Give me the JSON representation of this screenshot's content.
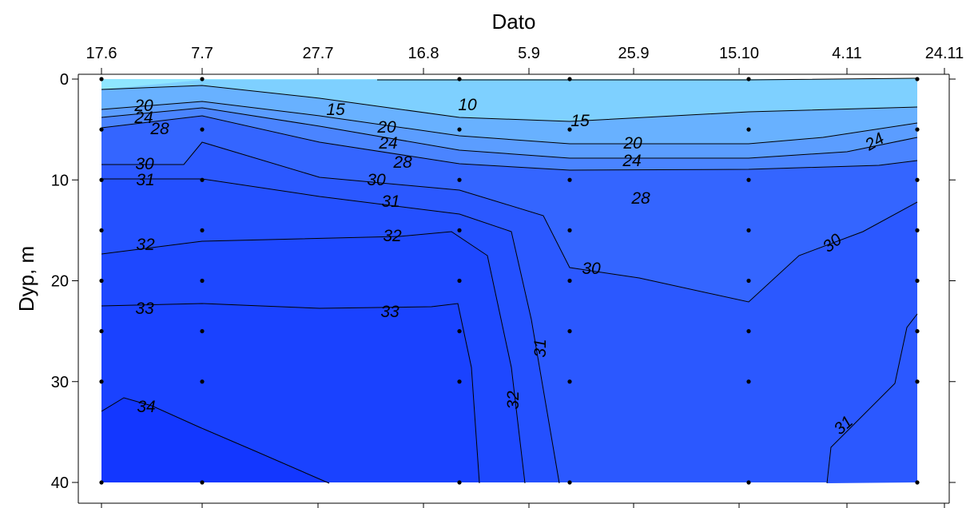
{
  "chart_data": {
    "type": "contour",
    "title": "",
    "xlabel": "Dato",
    "ylabel": "Dyp, m",
    "x_tick_labels": [
      "17.6",
      "7.7",
      "27.7",
      "16.8",
      "5.9",
      "25.9",
      "15.10",
      "4.11",
      "24.11"
    ],
    "y_ticks": [
      0,
      10,
      20,
      30,
      40
    ],
    "ylim": [
      0,
      40
    ],
    "y_inverted": true,
    "x_axis_position": "top",
    "contour_levels": [
      10,
      15,
      20,
      24,
      28,
      30,
      31,
      32,
      33,
      34
    ],
    "fill_colors": {
      "lt10": "#8fe6ff",
      "10-15": "#7ed0ff",
      "15-20": "#68b1ff",
      "20-24": "#5b9dff",
      "24-28": "#4a84ff",
      "28-30": "#3465ff",
      "30-31": "#2b58ff",
      "31-32": "#2450ff",
      "32-33": "#1e48ff",
      "33-34": "#1a42ff",
      "gt34": "#1337ff"
    },
    "line_color": "#000000",
    "sample_stations": [
      {
        "date": "17.6",
        "depths": [
          0,
          5,
          10,
          15,
          20,
          25,
          30,
          40
        ]
      },
      {
        "date": "7.7",
        "depths": [
          0,
          5,
          10,
          15,
          20,
          25,
          30,
          40
        ]
      },
      {
        "date": "16.8",
        "depths": [
          0,
          5,
          10,
          15,
          20,
          25,
          30,
          40
        ]
      },
      {
        "date": "5.9",
        "depths": [
          0,
          5,
          10,
          15,
          20,
          25,
          30,
          40
        ]
      },
      {
        "date": "15.10",
        "depths": [
          0,
          5,
          10,
          15,
          20,
          25,
          30,
          40
        ]
      },
      {
        "date": "24.11",
        "depths": [
          0,
          5,
          10,
          15,
          20,
          25,
          30,
          40
        ]
      }
    ],
    "contour_labels": [
      {
        "text": "10",
        "level": 10
      },
      {
        "text": "15",
        "level": 15
      },
      {
        "text": "15",
        "level": 15
      },
      {
        "text": "20",
        "level": 20
      },
      {
        "text": "20",
        "level": 20
      },
      {
        "text": "20",
        "level": 20
      },
      {
        "text": "24",
        "level": 24
      },
      {
        "text": "24",
        "level": 24
      },
      {
        "text": "24",
        "level": 24
      },
      {
        "text": "24",
        "level": 24
      },
      {
        "text": "28",
        "level": 28
      },
      {
        "text": "28",
        "level": 28
      },
      {
        "text": "28",
        "level": 28
      },
      {
        "text": "30",
        "level": 30
      },
      {
        "text": "30",
        "level": 30
      },
      {
        "text": "30",
        "level": 30
      },
      {
        "text": "30",
        "level": 30
      },
      {
        "text": "31",
        "level": 31
      },
      {
        "text": "31",
        "level": 31
      },
      {
        "text": "31",
        "level": 31
      },
      {
        "text": "31",
        "level": 31
      },
      {
        "text": "32",
        "level": 32
      },
      {
        "text": "32",
        "level": 32
      },
      {
        "text": "32",
        "level": 32
      },
      {
        "text": "33",
        "level": 33
      },
      {
        "text": "33",
        "level": 33
      },
      {
        "text": "34",
        "level": 34
      }
    ]
  }
}
